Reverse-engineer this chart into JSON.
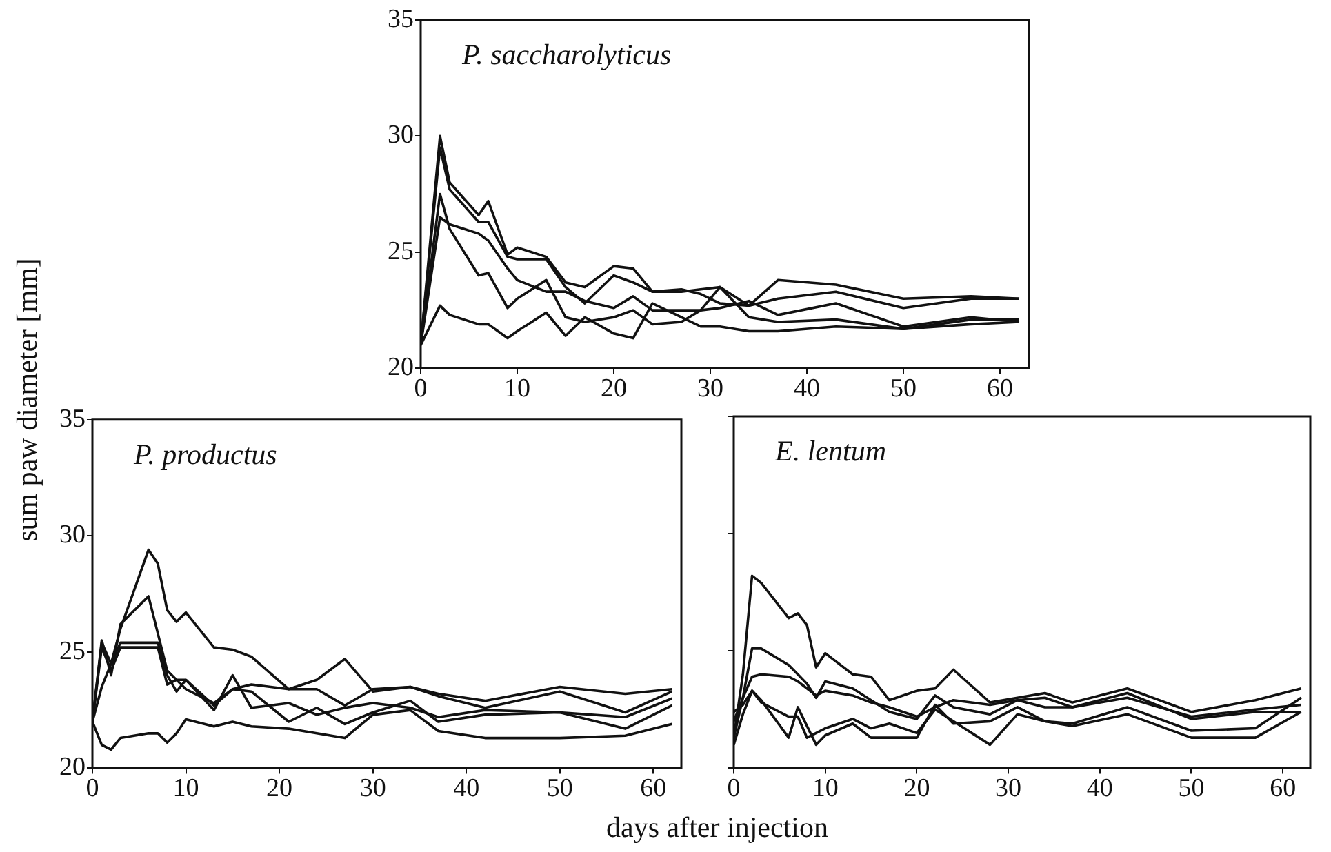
{
  "chart_data": [
    {
      "type": "line",
      "title": "P. saccharolyticus",
      "x": [
        0,
        2,
        3,
        6,
        7,
        9,
        10,
        13,
        15,
        17,
        20,
        22,
        24,
        27,
        29,
        31,
        34,
        37,
        43,
        50,
        57,
        62
      ],
      "xlim": [
        0,
        63
      ],
      "ylim": [
        20,
        35
      ],
      "xticks": [
        0,
        10,
        20,
        30,
        40,
        50,
        60
      ],
      "yticks": [
        20,
        25,
        30,
        35
      ],
      "grid": false,
      "legend": false,
      "marker": "none",
      "line_style": "solid",
      "series": [
        {
          "color": "#111111",
          "values": [
            21,
            30,
            28,
            26.6,
            27.2,
            24.9,
            25.2,
            24.8,
            23.7,
            23.5,
            24.4,
            24.3,
            23.3,
            23.3,
            23.4,
            23.5,
            22.7,
            23.8,
            23.6,
            23,
            23.1,
            23
          ]
        },
        {
          "color": "#111111",
          "values": [
            21,
            29.5,
            27.7,
            26.3,
            26.3,
            24.8,
            24.7,
            24.7,
            23.5,
            22.8,
            24,
            23.7,
            23.3,
            23.4,
            23.2,
            22.8,
            22.7,
            23,
            23.3,
            22.6,
            23,
            23
          ]
        },
        {
          "color": "#111111",
          "values": [
            21,
            26.5,
            26.2,
            25.8,
            25.5,
            24.3,
            23.8,
            23.3,
            23.3,
            22.9,
            22.6,
            23.1,
            22.5,
            22.5,
            22.5,
            22.6,
            22.9,
            22.3,
            22.8,
            21.8,
            22.2,
            22
          ]
        },
        {
          "color": "#111111",
          "values": [
            21,
            27.5,
            26,
            24,
            24.1,
            22.6,
            23,
            23.8,
            22.2,
            22,
            22.2,
            22.5,
            21.9,
            22,
            22.5,
            23.5,
            22.2,
            22,
            22.1,
            21.7,
            22.1,
            22.1
          ]
        },
        {
          "color": "#111111",
          "values": [
            21,
            22.7,
            22.3,
            21.9,
            21.9,
            21.3,
            21.6,
            22.4,
            21.4,
            22.2,
            21.5,
            21.3,
            22.8,
            22.2,
            21.8,
            21.8,
            21.6,
            21.6,
            21.8,
            21.7,
            21.9,
            22
          ]
        }
      ]
    },
    {
      "type": "line",
      "title": "P. productus",
      "xlabel": "days after injection",
      "ylabel": "sum paw diameter [mm]",
      "x": [
        0,
        1,
        2,
        3,
        6,
        7,
        8,
        9,
        10,
        13,
        15,
        17,
        21,
        24,
        27,
        30,
        34,
        37,
        42,
        50,
        57,
        62
      ],
      "xlim": [
        0,
        63
      ],
      "ylim": [
        20,
        35
      ],
      "xticks": [
        0,
        10,
        20,
        30,
        40,
        50,
        60
      ],
      "yticks": [
        20,
        25,
        30,
        35
      ],
      "grid": false,
      "legend": false,
      "marker": "none",
      "line_style": "solid",
      "series": [
        {
          "color": "#111111",
          "values": [
            22,
            23.5,
            24.5,
            26,
            29.4,
            28.8,
            26.8,
            26.3,
            26.7,
            25.2,
            25.1,
            24.8,
            23.4,
            23.8,
            24.7,
            23.3,
            23.5,
            23.2,
            22.9,
            23.5,
            23.2,
            23.4
          ]
        },
        {
          "color": "#111111",
          "values": [
            22,
            25.5,
            24,
            26.2,
            27.4,
            25.8,
            24.2,
            23.8,
            23.8,
            22.7,
            23.4,
            23.6,
            23.4,
            23.4,
            22.7,
            23.4,
            23.5,
            23.1,
            22.6,
            23.3,
            22.4,
            23.3
          ]
        },
        {
          "color": "#111111",
          "values": [
            22,
            25.4,
            24.5,
            25.4,
            25.4,
            25.4,
            24,
            23.3,
            23.8,
            22.5,
            24,
            22.6,
            22.8,
            22.3,
            22.6,
            22.8,
            22.6,
            22.2,
            22.5,
            22.4,
            22.2,
            23
          ]
        },
        {
          "color": "#111111",
          "values": [
            22,
            25.2,
            24.2,
            25.2,
            25.2,
            25.2,
            23.6,
            23.8,
            23.4,
            22.8,
            23.4,
            23.3,
            22,
            22.6,
            21.9,
            22.4,
            22.9,
            22,
            22.3,
            22.4,
            21.7,
            22.7
          ]
        },
        {
          "color": "#111111",
          "values": [
            22,
            21,
            20.8,
            21.3,
            21.5,
            21.5,
            21.1,
            21.5,
            22.1,
            21.8,
            22,
            21.8,
            21.7,
            21.5,
            21.3,
            22.3,
            22.5,
            21.6,
            21.3,
            21.3,
            21.4,
            21.9
          ]
        }
      ]
    },
    {
      "type": "line",
      "title": "E. lentum",
      "tick_labels": "x",
      "x": [
        0,
        1,
        2,
        3,
        6,
        7,
        8,
        9,
        10,
        13,
        15,
        17,
        20,
        22,
        24,
        28,
        31,
        34,
        37,
        43,
        50,
        57,
        62
      ],
      "xlim": [
        0,
        63
      ],
      "ylim": [
        20,
        35
      ],
      "xticks": [
        0,
        10,
        20,
        30,
        40,
        50,
        60
      ],
      "yticks": [
        20,
        25,
        30,
        35
      ],
      "grid": false,
      "legend": false,
      "marker": "none",
      "line_style": "solid",
      "series": [
        {
          "color": "#111111",
          "values": [
            21.3,
            24,
            28.2,
            27.9,
            26.4,
            26.6,
            26.1,
            24.3,
            24.9,
            24,
            23.9,
            22.9,
            23.3,
            23.4,
            24.2,
            22.8,
            23,
            23.2,
            22.8,
            23.4,
            22.4,
            22.9,
            23.4
          ]
        },
        {
          "color": "#111111",
          "values": [
            21.3,
            23,
            25.1,
            25.1,
            24.4,
            24,
            23.6,
            23,
            23.7,
            23.4,
            22.9,
            22.4,
            22.1,
            23.1,
            22.6,
            22.3,
            22.9,
            23,
            22.6,
            23.2,
            22.1,
            22.4,
            22.4
          ]
        },
        {
          "color": "#111111",
          "values": [
            22,
            23,
            23.9,
            24,
            23.9,
            23.7,
            23.4,
            23.1,
            23.3,
            23.1,
            22.8,
            22.6,
            22.2,
            22.6,
            22.9,
            22.7,
            22.9,
            22.6,
            22.6,
            23,
            22.2,
            22.5,
            22.7
          ]
        },
        {
          "color": "#111111",
          "values": [
            22.4,
            22.7,
            23.3,
            22.8,
            22.2,
            22.2,
            21.3,
            21.5,
            21.7,
            22.1,
            21.7,
            21.9,
            21.5,
            22.5,
            22,
            21,
            22.3,
            22,
            21.9,
            22.6,
            21.6,
            21.7,
            23
          ]
        },
        {
          "color": "#111111",
          "values": [
            21,
            22.3,
            23.3,
            22.9,
            21.3,
            22.6,
            21.8,
            21,
            21.4,
            21.9,
            21.3,
            21.3,
            21.3,
            22.7,
            21.9,
            22,
            22.6,
            22,
            21.8,
            22.3,
            21.3,
            21.3,
            22.4
          ]
        }
      ]
    }
  ]
}
